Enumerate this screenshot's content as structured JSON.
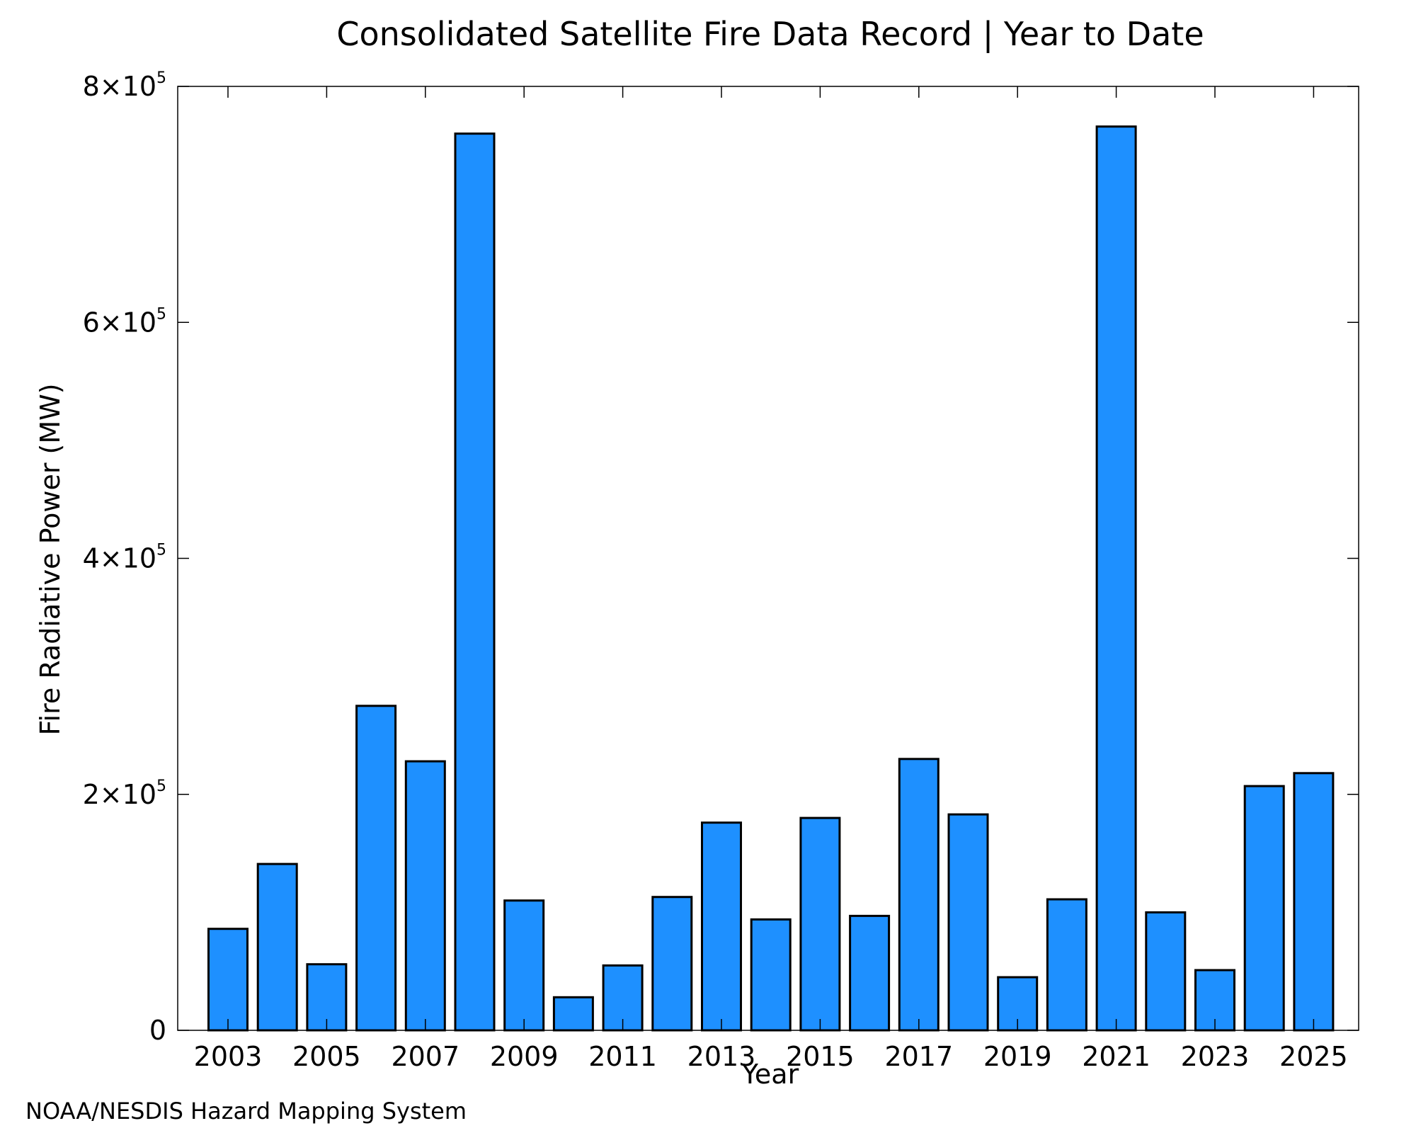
{
  "chart_data": {
    "type": "bar",
    "title": "Consolidated Satellite Fire Data Record | Year to Date",
    "xlabel": "Year",
    "ylabel": "Fire Radiative Power (MW)",
    "categories": [
      "2003",
      "2004",
      "2005",
      "2006",
      "2007",
      "2008",
      "2009",
      "2010",
      "2011",
      "2012",
      "2013",
      "2014",
      "2015",
      "2016",
      "2017",
      "2018",
      "2019",
      "2020",
      "2021",
      "2022",
      "2023",
      "2024",
      "2025"
    ],
    "values": [
      86000,
      141000,
      56000,
      275000,
      228000,
      760000,
      110000,
      28000,
      55000,
      113000,
      176000,
      94000,
      180000,
      97000,
      230000,
      183000,
      45000,
      111000,
      766000,
      100000,
      51000,
      207000,
      218000
    ],
    "ylim": [
      0,
      800000
    ],
    "yticks": [
      {
        "value": 0,
        "mantissa": "0",
        "exponent": ""
      },
      {
        "value": 200000,
        "mantissa": "2×10",
        "exponent": "5"
      },
      {
        "value": 400000,
        "mantissa": "4×10",
        "exponent": "5"
      },
      {
        "value": 600000,
        "mantissa": "6×10",
        "exponent": "5"
      },
      {
        "value": 800000,
        "mantissa": "8×10",
        "exponent": "5"
      }
    ],
    "xtick_labels": [
      "2003",
      "2005",
      "2007",
      "2009",
      "2011",
      "2013",
      "2015",
      "2017",
      "2019",
      "2021",
      "2023",
      "2025"
    ],
    "bar_color": "#1e90ff",
    "edge_color": "#000000",
    "grid": false,
    "legend": "none"
  },
  "source_note": "NOAA/NESDIS Hazard Mapping System",
  "colors": {
    "source_note": "#808080"
  }
}
